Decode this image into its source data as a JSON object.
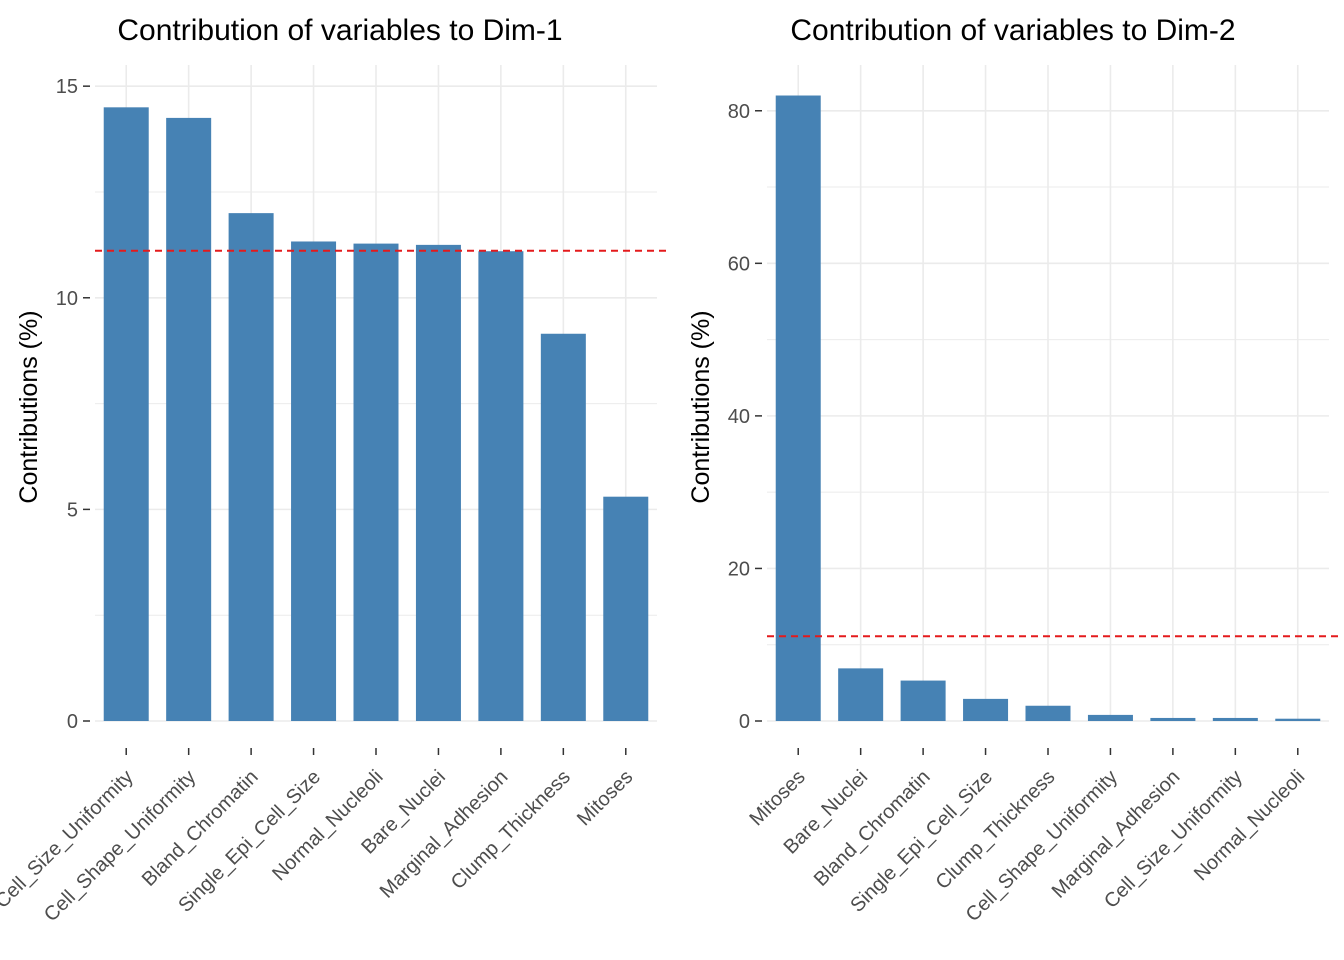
{
  "colors": {
    "bar": "#4682b4",
    "reference_line": "#e41a1c",
    "grid": "#ebebeb",
    "tick_text": "#4d4d4d",
    "title_text": "#000000"
  },
  "chart_data": [
    {
      "type": "bar",
      "title": "Contribution of variables to Dim-1",
      "xlabel": "",
      "ylabel": "Contributions (%)",
      "ylim": [
        0,
        15.5
      ],
      "yticks": [
        0,
        5,
        10,
        15
      ],
      "ytick_labels": [
        "0",
        "5",
        "10",
        "15"
      ],
      "categories": [
        "Cell_Size_Uniformity",
        "Cell_Shape_Uniformity",
        "Bland_Chromatin",
        "Single_Epi_Cell_Size",
        "Normal_Nucleoli",
        "Bare_Nuclei",
        "Marginal_Adhesion",
        "Clump_Thickness",
        "Mitoses"
      ],
      "values": [
        14.5,
        14.25,
        12.0,
        11.33,
        11.28,
        11.25,
        11.1,
        9.15,
        5.3
      ],
      "reference_line": 11.11,
      "grid": true
    },
    {
      "type": "bar",
      "title": "Contribution of variables to Dim-2",
      "xlabel": "",
      "ylabel": "Contributions (%)",
      "ylim": [
        0,
        86
      ],
      "yticks": [
        0,
        20,
        40,
        60,
        80
      ],
      "ytick_labels": [
        "0",
        "20",
        "40",
        "60",
        "80"
      ],
      "categories": [
        "Mitoses",
        "Bare_Nuclei",
        "Bland_Chromatin",
        "Single_Epi_Cell_Size",
        "Clump_Thickness",
        "Cell_Shape_Uniformity",
        "Marginal_Adhesion",
        "Cell_Size_Uniformity",
        "Normal_Nucleoli"
      ],
      "values": [
        82.0,
        6.9,
        5.3,
        2.9,
        2.0,
        0.8,
        0.4,
        0.4,
        0.3
      ],
      "reference_line": 11.11,
      "grid": true
    }
  ]
}
